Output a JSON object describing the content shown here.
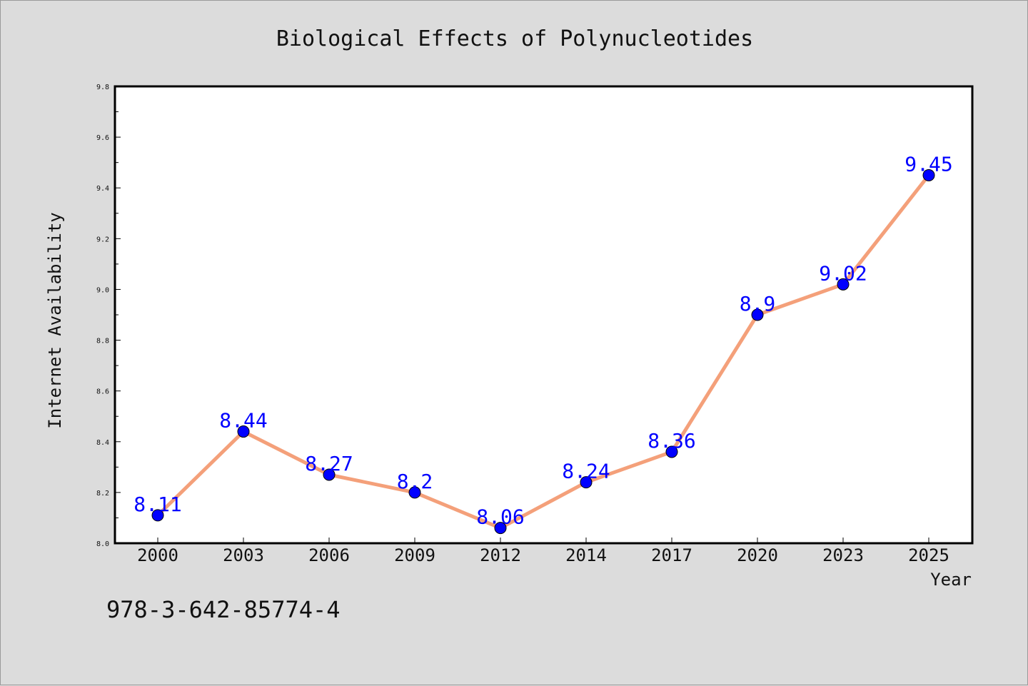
{
  "chart_data": {
    "type": "line",
    "title": "Biological Effects of Polynucleotides",
    "xlabel": "Year",
    "ylabel": "Internet Availability",
    "categories": [
      "2000",
      "2003",
      "2006",
      "2009",
      "2012",
      "2014",
      "2017",
      "2020",
      "2023",
      "2025"
    ],
    "values": [
      8.11,
      8.44,
      8.27,
      8.2,
      8.06,
      8.24,
      8.36,
      8.9,
      9.02,
      9.45
    ],
    "data_labels": [
      "8.11",
      "8.44",
      "8.27",
      "8.2",
      "8.06",
      "8.24",
      "8.36",
      "8.9",
      "9.02",
      "9.45"
    ],
    "ylim": [
      8.0,
      9.8
    ],
    "yticks": [
      "8.0",
      "8.2",
      "8.4",
      "8.6",
      "8.8",
      "9.0",
      "9.2",
      "9.4",
      "9.6",
      "9.8"
    ],
    "grid": false,
    "legend": "none",
    "line_color": "#f4a07a",
    "marker_color": "#0000ff",
    "label_color": "#0000ff"
  },
  "footer": {
    "isbn": "978-3-642-85774-4"
  }
}
